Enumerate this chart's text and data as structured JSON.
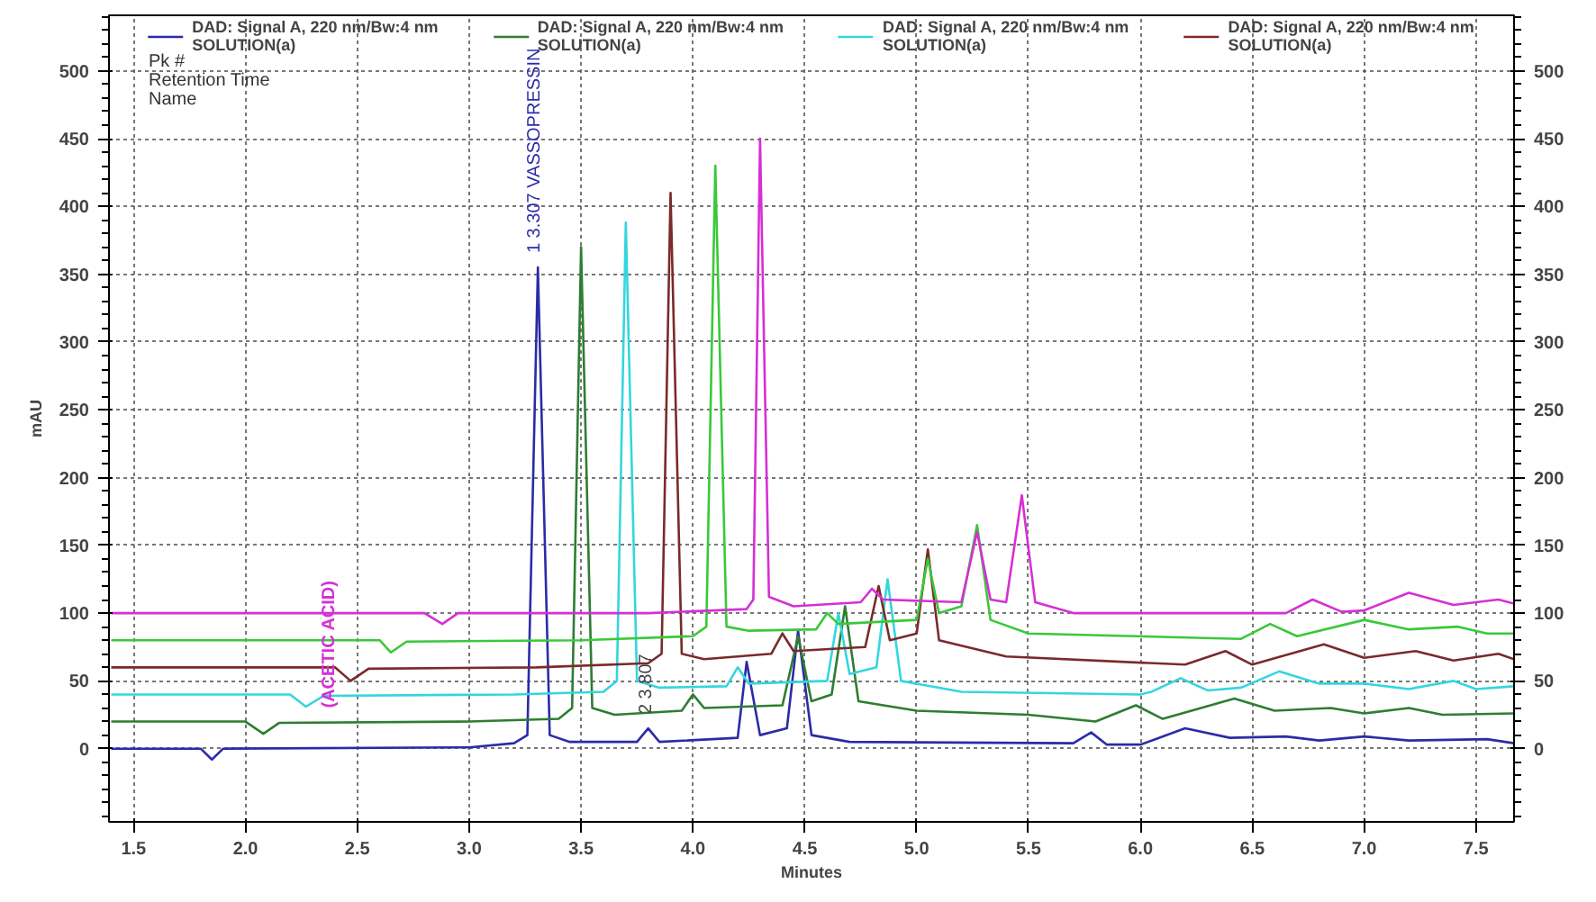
{
  "chart_data": {
    "type": "line",
    "xlabel": "Minutes",
    "ylabel": "mAU",
    "xlim": [
      1.39,
      7.67
    ],
    "ylim": [
      -54,
      541
    ],
    "y2lim": [
      -54,
      541
    ],
    "xticks": [
      1.5,
      {
        "value": 2,
        "label": "2.0"
      },
      2.5,
      {
        "value": 3,
        "label": "3.0"
      },
      3.5,
      {
        "value": 4,
        "label": "4.0"
      },
      4.5,
      {
        "value": 5,
        "label": "5.0"
      },
      5.5,
      {
        "value": 6,
        "label": "6.0"
      },
      6.5,
      {
        "value": 7,
        "label": "7.0"
      },
      7.5
    ],
    "yticks": [
      0,
      50,
      100,
      150,
      200,
      250,
      300,
      350,
      400,
      450,
      500
    ],
    "y2ticks": [
      0,
      50,
      100,
      150,
      200,
      250,
      300,
      350,
      400,
      450,
      500
    ],
    "grid": true,
    "legend": "top",
    "line_style": "solid",
    "marker": "none",
    "annotations": [
      "Pk #",
      "Retention Time",
      "Name",
      {
        "text": "1 3.307 VASSOPRESSIN",
        "x": 3.307,
        "y": 355
      },
      {
        "text": "2 3.807",
        "x": 3.807,
        "y": 15
      },
      "(ACETIC ACID)"
    ],
    "series": [
      {
        "name": "DAD: Signal A, 220 nm/Bw:4 nm\nSOLUTION(a)",
        "color": "#2b2ba8",
        "x": [
          1.4,
          1.8,
          1.85,
          1.9,
          3.0,
          3.2,
          3.26,
          3.307,
          3.36,
          3.45,
          3.75,
          3.8,
          3.85,
          4.2,
          4.24,
          4.3,
          4.42,
          4.47,
          4.53,
          4.7,
          5.7,
          5.78,
          5.85,
          6.0,
          6.2,
          6.4,
          6.65,
          6.8,
          7.0,
          7.2,
          7.55,
          7.67
        ],
        "values": [
          0,
          0,
          -8,
          0,
          1,
          4,
          10,
          355,
          10,
          5,
          5,
          15,
          5,
          8,
          64,
          10,
          15,
          87,
          10,
          5,
          4,
          12,
          3,
          3,
          15,
          8,
          9,
          6,
          9,
          6,
          7,
          4
        ]
      },
      {
        "name": "DAD: Signal A, 220 nm/Bw:4 nm\nSOLUTION(a)",
        "color": "#2e7d32",
        "x": [
          1.4,
          2.0,
          2.08,
          2.15,
          3.0,
          3.4,
          3.46,
          3.5,
          3.55,
          3.65,
          3.95,
          4.0,
          4.05,
          4.4,
          4.47,
          4.53,
          4.62,
          4.68,
          4.74,
          5.0,
          5.5,
          5.8,
          5.98,
          6.1,
          6.42,
          6.6,
          6.85,
          7.0,
          7.2,
          7.35,
          7.67
        ],
        "values": [
          20,
          20,
          11,
          19,
          20,
          22,
          30,
          370,
          30,
          25,
          28,
          40,
          30,
          32,
          83,
          35,
          40,
          105,
          35,
          28,
          25,
          20,
          32,
          22,
          37,
          28,
          30,
          26,
          30,
          25,
          26
        ]
      },
      {
        "name": "DAD: Signal A, 220 nm/Bw:4 nm\nSOLUTION(a)",
        "color": "#33d6e0",
        "x": [
          1.4,
          2.2,
          2.27,
          2.35,
          3.2,
          3.6,
          3.66,
          3.7,
          3.75,
          3.85,
          4.15,
          4.2,
          4.25,
          4.6,
          4.65,
          4.7,
          4.82,
          4.87,
          4.93,
          5.2,
          6.0,
          6.05,
          6.18,
          6.3,
          6.45,
          6.62,
          6.8,
          7.0,
          7.2,
          7.4,
          7.5,
          7.67
        ],
        "values": [
          40,
          40,
          31,
          39,
          40,
          42,
          50,
          388,
          50,
          45,
          46,
          60,
          48,
          50,
          100,
          55,
          60,
          125,
          50,
          42,
          40,
          42,
          52,
          43,
          45,
          57,
          48,
          48,
          44,
          50,
          44,
          46
        ]
      },
      {
        "name": "DAD: Signal A, 220 nm/Bw:4 nm\nSOLUTION(a)",
        "color": "#7a2a2a",
        "x": [
          1.4,
          2.4,
          2.47,
          2.55,
          3.3,
          3.8,
          3.86,
          3.9,
          3.95,
          4.05,
          4.35,
          4.4,
          4.45,
          4.77,
          4.83,
          4.88,
          5.0,
          5.05,
          5.1,
          5.4,
          6.2,
          6.38,
          6.5,
          6.82,
          7.0,
          7.23,
          7.4,
          7.6,
          7.67
        ],
        "values": [
          60,
          60,
          50,
          59,
          60,
          63,
          70,
          410,
          70,
          66,
          70,
          85,
          72,
          75,
          120,
          80,
          85,
          147,
          80,
          68,
          62,
          72,
          62,
          77,
          67,
          72,
          65,
          70,
          66
        ]
      },
      {
        "color": "#39c939",
        "x": [
          1.4,
          2.6,
          2.65,
          2.72,
          3.5,
          4.0,
          4.06,
          4.1,
          4.15,
          4.25,
          4.55,
          4.6,
          4.65,
          5.0,
          5.05,
          5.1,
          5.2,
          5.27,
          5.33,
          5.5,
          6.45,
          6.58,
          6.7,
          7.0,
          7.2,
          7.42,
          7.55,
          7.67
        ],
        "values": [
          80,
          80,
          71,
          79,
          80,
          83,
          90,
          430,
          90,
          87,
          88,
          100,
          92,
          95,
          140,
          100,
          105,
          165,
          95,
          85,
          81,
          92,
          83,
          95,
          88,
          90,
          85,
          85
        ]
      },
      {
        "color": "#d62fd6",
        "x": [
          1.4,
          2.8,
          2.88,
          2.95,
          3.8,
          4.24,
          4.27,
          4.3,
          4.34,
          4.45,
          4.75,
          4.8,
          4.85,
          5.2,
          5.27,
          5.33,
          5.4,
          5.47,
          5.53,
          5.7,
          6.65,
          6.77,
          6.9,
          7.0,
          7.2,
          7.4,
          7.6,
          7.67
        ],
        "values": [
          100,
          100,
          92,
          100,
          100,
          103,
          110,
          450,
          112,
          105,
          108,
          118,
          110,
          108,
          160,
          110,
          108,
          187,
          108,
          100,
          100,
          110,
          101,
          102,
          115,
          106,
          110,
          107
        ]
      }
    ]
  }
}
